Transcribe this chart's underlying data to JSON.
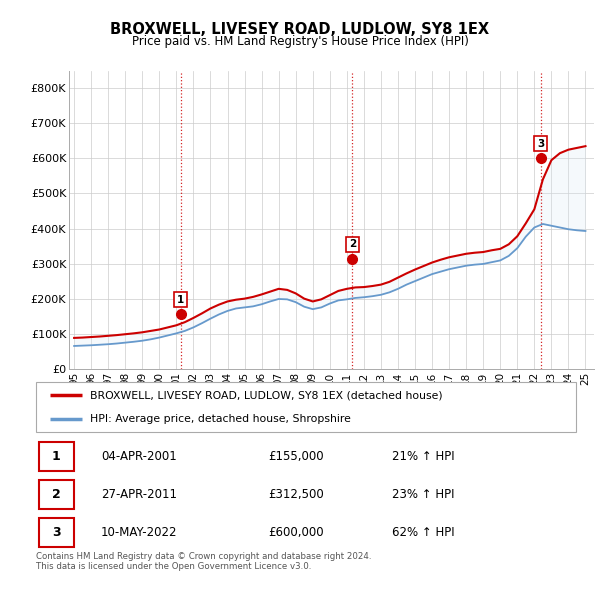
{
  "title": "BROXWELL, LIVESEY ROAD, LUDLOW, SY8 1EX",
  "subtitle": "Price paid vs. HM Land Registry's House Price Index (HPI)",
  "ylim": [
    0,
    850000
  ],
  "yticks": [
    0,
    100000,
    200000,
    300000,
    400000,
    500000,
    600000,
    700000,
    800000
  ],
  "ytick_labels": [
    "£0",
    "£100K",
    "£200K",
    "£300K",
    "£400K",
    "£500K",
    "£600K",
    "£700K",
    "£800K"
  ],
  "xlim_start": 1994.7,
  "xlim_end": 2025.5,
  "xtick_years": [
    1995,
    1996,
    1997,
    1998,
    1999,
    2000,
    2001,
    2002,
    2003,
    2004,
    2005,
    2006,
    2007,
    2008,
    2009,
    2010,
    2011,
    2012,
    2013,
    2014,
    2015,
    2016,
    2017,
    2018,
    2019,
    2020,
    2021,
    2022,
    2023,
    2024,
    2025
  ],
  "red_line_color": "#cc0000",
  "blue_line_color": "#6699cc",
  "blue_fill_color": "#d8e8f5",
  "transaction_markers": [
    {
      "year": 2001.25,
      "value": 155000,
      "label": "1"
    },
    {
      "year": 2011.33,
      "value": 312500,
      "label": "2"
    },
    {
      "year": 2022.37,
      "value": 600000,
      "label": "3"
    }
  ],
  "vline_color": "#cc0000",
  "grid_color": "#cccccc",
  "legend_red_label": "BROXWELL, LIVESEY ROAD, LUDLOW, SY8 1EX (detached house)",
  "legend_blue_label": "HPI: Average price, detached house, Shropshire",
  "table_rows": [
    {
      "num": "1",
      "date": "04-APR-2001",
      "price": "£155,000",
      "hpi": "21% ↑ HPI"
    },
    {
      "num": "2",
      "date": "27-APR-2011",
      "price": "£312,500",
      "hpi": "23% ↑ HPI"
    },
    {
      "num": "3",
      "date": "10-MAY-2022",
      "price": "£600,000",
      "hpi": "62% ↑ HPI"
    }
  ],
  "footnote": "Contains HM Land Registry data © Crown copyright and database right 2024.\nThis data is licensed under the Open Government Licence v3.0.",
  "red_hpi_data": [
    [
      1995.0,
      88000
    ],
    [
      1995.5,
      89000
    ],
    [
      1996.0,
      90500
    ],
    [
      1996.5,
      92000
    ],
    [
      1997.0,
      94000
    ],
    [
      1997.5,
      96000
    ],
    [
      1998.0,
      98500
    ],
    [
      1998.5,
      101000
    ],
    [
      1999.0,
      104000
    ],
    [
      1999.5,
      108000
    ],
    [
      2000.0,
      112000
    ],
    [
      2000.5,
      118000
    ],
    [
      2001.0,
      124000
    ],
    [
      2001.5,
      133000
    ],
    [
      2002.0,
      145000
    ],
    [
      2002.5,
      158000
    ],
    [
      2003.0,
      172000
    ],
    [
      2003.5,
      183000
    ],
    [
      2004.0,
      192000
    ],
    [
      2004.5,
      197000
    ],
    [
      2005.0,
      200000
    ],
    [
      2005.5,
      205000
    ],
    [
      2006.0,
      212000
    ],
    [
      2006.5,
      220000
    ],
    [
      2007.0,
      228000
    ],
    [
      2007.5,
      225000
    ],
    [
      2008.0,
      215000
    ],
    [
      2008.5,
      200000
    ],
    [
      2009.0,
      192000
    ],
    [
      2009.5,
      198000
    ],
    [
      2010.0,
      210000
    ],
    [
      2010.5,
      222000
    ],
    [
      2011.0,
      228000
    ],
    [
      2011.5,
      232000
    ],
    [
      2012.0,
      233000
    ],
    [
      2012.5,
      236000
    ],
    [
      2013.0,
      240000
    ],
    [
      2013.5,
      248000
    ],
    [
      2014.0,
      260000
    ],
    [
      2014.5,
      272000
    ],
    [
      2015.0,
      283000
    ],
    [
      2015.5,
      293000
    ],
    [
      2016.0,
      303000
    ],
    [
      2016.5,
      311000
    ],
    [
      2017.0,
      318000
    ],
    [
      2017.5,
      323000
    ],
    [
      2018.0,
      328000
    ],
    [
      2018.5,
      331000
    ],
    [
      2019.0,
      333000
    ],
    [
      2019.5,
      338000
    ],
    [
      2020.0,
      342000
    ],
    [
      2020.5,
      355000
    ],
    [
      2021.0,
      378000
    ],
    [
      2021.5,
      415000
    ],
    [
      2022.0,
      455000
    ],
    [
      2022.5,
      540000
    ],
    [
      2023.0,
      595000
    ],
    [
      2023.5,
      615000
    ],
    [
      2024.0,
      625000
    ],
    [
      2024.5,
      630000
    ],
    [
      2025.0,
      635000
    ]
  ],
  "blue_hpi_data": [
    [
      1995.0,
      65000
    ],
    [
      1995.5,
      66000
    ],
    [
      1996.0,
      67000
    ],
    [
      1996.5,
      68500
    ],
    [
      1997.0,
      70000
    ],
    [
      1997.5,
      72000
    ],
    [
      1998.0,
      74500
    ],
    [
      1998.5,
      77000
    ],
    [
      1999.0,
      80000
    ],
    [
      1999.5,
      84000
    ],
    [
      2000.0,
      89000
    ],
    [
      2000.5,
      95000
    ],
    [
      2001.0,
      101000
    ],
    [
      2001.5,
      108000
    ],
    [
      2002.0,
      118000
    ],
    [
      2002.5,
      130000
    ],
    [
      2003.0,
      143000
    ],
    [
      2003.5,
      155000
    ],
    [
      2004.0,
      165000
    ],
    [
      2004.5,
      172000
    ],
    [
      2005.0,
      175000
    ],
    [
      2005.5,
      178000
    ],
    [
      2006.0,
      184000
    ],
    [
      2006.5,
      192000
    ],
    [
      2007.0,
      199000
    ],
    [
      2007.5,
      198000
    ],
    [
      2008.0,
      190000
    ],
    [
      2008.5,
      177000
    ],
    [
      2009.0,
      170000
    ],
    [
      2009.5,
      175000
    ],
    [
      2010.0,
      186000
    ],
    [
      2010.5,
      195000
    ],
    [
      2011.0,
      198000
    ],
    [
      2011.5,
      202000
    ],
    [
      2012.0,
      204000
    ],
    [
      2012.5,
      207000
    ],
    [
      2013.0,
      211000
    ],
    [
      2013.5,
      218000
    ],
    [
      2014.0,
      228000
    ],
    [
      2014.5,
      240000
    ],
    [
      2015.0,
      250000
    ],
    [
      2015.5,
      260000
    ],
    [
      2016.0,
      270000
    ],
    [
      2016.5,
      277000
    ],
    [
      2017.0,
      284000
    ],
    [
      2017.5,
      289000
    ],
    [
      2018.0,
      294000
    ],
    [
      2018.5,
      297000
    ],
    [
      2019.0,
      299000
    ],
    [
      2019.5,
      304000
    ],
    [
      2020.0,
      309000
    ],
    [
      2020.5,
      322000
    ],
    [
      2021.0,
      344000
    ],
    [
      2021.5,
      377000
    ],
    [
      2022.0,
      403000
    ],
    [
      2022.5,
      413000
    ],
    [
      2023.0,
      408000
    ],
    [
      2023.5,
      403000
    ],
    [
      2024.0,
      398000
    ],
    [
      2024.5,
      395000
    ],
    [
      2025.0,
      393000
    ]
  ]
}
